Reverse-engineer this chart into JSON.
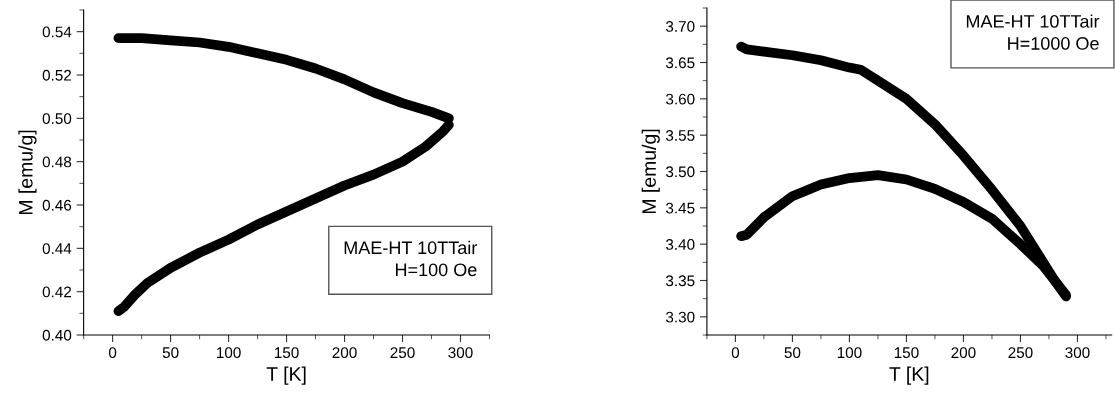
{
  "chart_data": [
    {
      "type": "line",
      "xlabel": "T [K]",
      "ylabel": "M [emu/g]",
      "annotations": [
        "MAE-HT 10TTair\nH=100 Oe"
      ],
      "xlim": [
        -25,
        325
      ],
      "xticks": [
        0,
        50,
        100,
        150,
        200,
        250,
        300
      ],
      "ylim": [
        0.4,
        0.55
      ],
      "yticks": [
        {
          "value": 0.4,
          "label": "0.40"
        },
        {
          "value": 0.42,
          "label": "0.42"
        },
        {
          "value": 0.44,
          "label": "0.44"
        },
        {
          "value": 0.46,
          "label": "0.46"
        },
        {
          "value": 0.48,
          "label": "0.48"
        },
        {
          "value": 0.5,
          "label": "0.50"
        },
        {
          "value": 0.52,
          "label": "0.52"
        },
        {
          "value": 0.54,
          "label": "0.54"
        }
      ],
      "grid": false,
      "legend": false,
      "series": [
        {
          "color": "#000000",
          "x": [
            5,
            25,
            50,
            75,
            100,
            125,
            150,
            175,
            200,
            225,
            250,
            275,
            290
          ],
          "values": [
            0.537,
            0.537,
            0.536,
            0.535,
            0.533,
            0.53,
            0.527,
            0.523,
            0.518,
            0.512,
            0.507,
            0.503,
            0.5
          ]
        },
        {
          "color": "#000000",
          "x": [
            5,
            10,
            20,
            30,
            50,
            75,
            100,
            125,
            150,
            175,
            200,
            225,
            250,
            270,
            285,
            290
          ],
          "values": [
            0.411,
            0.413,
            0.419,
            0.424,
            0.431,
            0.438,
            0.444,
            0.451,
            0.457,
            0.463,
            0.469,
            0.474,
            0.48,
            0.487,
            0.494,
            0.497
          ]
        }
      ]
    },
    {
      "type": "line",
      "xlabel": "T [K]",
      "ylabel": "M [emu/g]",
      "annotations": [
        "MAE-HT 10TTair\nH=1000 Oe"
      ],
      "xlim": [
        -25,
        330
      ],
      "xticks": [
        0,
        50,
        100,
        150,
        200,
        250,
        300
      ],
      "ylim": [
        3.275,
        3.725
      ],
      "yticks": [
        {
          "value": 3.3,
          "label": "3.30"
        },
        {
          "value": 3.35,
          "label": "3.35"
        },
        {
          "value": 3.4,
          "label": "3.40"
        },
        {
          "value": 3.45,
          "label": "3.45"
        },
        {
          "value": 3.5,
          "label": "3.50"
        },
        {
          "value": 3.55,
          "label": "3.55"
        },
        {
          "value": 3.6,
          "label": "3.60"
        },
        {
          "value": 3.65,
          "label": "3.65"
        },
        {
          "value": 3.7,
          "label": "3.70"
        }
      ],
      "grid": false,
      "legend": false,
      "series": [
        {
          "color": "#000000",
          "x": [
            5,
            10,
            25,
            50,
            75,
            100,
            110,
            125,
            150,
            175,
            200,
            225,
            250,
            270,
            280,
            290
          ],
          "values": [
            3.672,
            3.668,
            3.665,
            3.66,
            3.653,
            3.643,
            3.64,
            3.625,
            3.6,
            3.565,
            3.522,
            3.475,
            3.425,
            3.375,
            3.35,
            3.328
          ]
        },
        {
          "color": "#000000",
          "x": [
            5,
            10,
            25,
            50,
            75,
            100,
            125,
            150,
            175,
            200,
            225,
            250,
            270,
            290
          ],
          "values": [
            3.411,
            3.413,
            3.437,
            3.466,
            3.482,
            3.491,
            3.495,
            3.489,
            3.476,
            3.458,
            3.435,
            3.4,
            3.37,
            3.33
          ]
        }
      ]
    }
  ]
}
